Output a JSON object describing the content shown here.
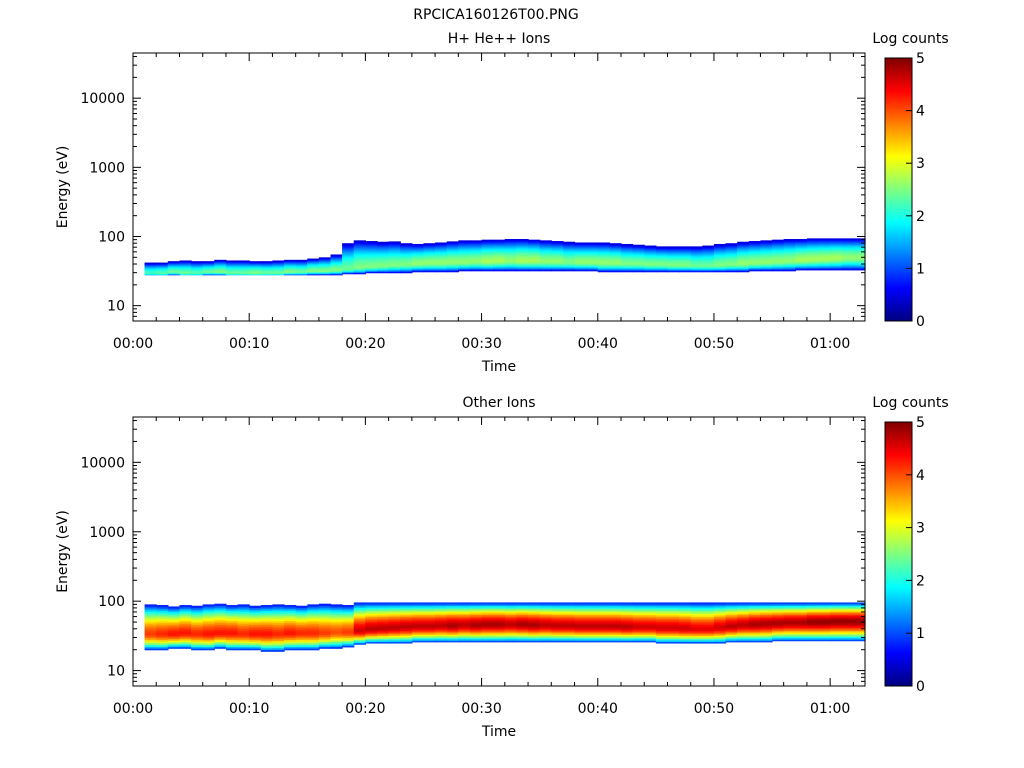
{
  "figure": {
    "title": "RPCICA160126T00.PNG"
  },
  "colormap": [
    "#00007f",
    "#0000ff",
    "#007fff",
    "#00ffff",
    "#7fff7f",
    "#ffff00",
    "#ff7f00",
    "#ff0000",
    "#7f0000"
  ],
  "chart_data": [
    {
      "type": "heatmap",
      "title": "H+ He++ Ions",
      "xlabel": "Time",
      "ylabel": "Energy (eV)",
      "x_ticks": [
        "00:00",
        "00:10",
        "00:20",
        "00:30",
        "00:40",
        "00:50",
        "01:00"
      ],
      "x_tick_minutes": [
        0,
        10,
        20,
        30,
        40,
        50,
        60
      ],
      "xlim_minutes": [
        0,
        63
      ],
      "y_scale": "log",
      "ylim": [
        6,
        45000
      ],
      "y_ticks": [
        "10",
        "100",
        "1000",
        "10000"
      ],
      "y_tick_values": [
        10,
        100,
        1000,
        10000
      ],
      "colorbar": {
        "label": "Log counts",
        "range": [
          0,
          5
        ],
        "ticks": [
          "0",
          "1",
          "2",
          "3",
          "4",
          "5"
        ]
      },
      "time_bins_minutes": [
        1,
        63
      ],
      "n_time_bins": 62,
      "profile": {
        "peak_energy_eV": [
          30,
          30,
          31,
          30,
          30,
          31,
          31,
          30,
          30,
          30,
          30,
          30,
          31,
          31,
          32,
          32,
          33,
          34,
          36,
          37,
          38,
          39,
          40,
          41,
          42,
          42,
          43,
          43,
          44,
          44,
          45,
          45,
          45,
          45,
          44,
          44,
          43,
          43,
          43,
          42,
          42,
          41,
          41,
          40,
          40,
          39,
          39,
          38,
          38,
          39,
          40,
          41,
          42,
          43,
          44,
          45,
          46,
          47,
          48,
          49,
          50,
          50
        ],
        "peak_log_counts": [
          2.2,
          2.3,
          2.4,
          2.4,
          2.3,
          2.4,
          2.5,
          2.4,
          2.4,
          2.5,
          2.4,
          2.4,
          2.5,
          2.4,
          2.5,
          2.5,
          2.5,
          2.4,
          2.5,
          2.5,
          2.5,
          2.5,
          2.5,
          2.6,
          2.6,
          2.6,
          2.6,
          2.6,
          2.6,
          2.7,
          2.7,
          2.6,
          2.7,
          2.7,
          2.6,
          2.6,
          2.5,
          2.6,
          2.6,
          2.6,
          2.6,
          2.5,
          2.5,
          2.5,
          2.5,
          2.5,
          2.5,
          2.4,
          2.4,
          2.5,
          2.5,
          2.6,
          2.6,
          2.6,
          2.6,
          2.6,
          2.7,
          2.7,
          2.7,
          2.7,
          2.6,
          2.6
        ],
        "upper_edge_eV": [
          42,
          42,
          44,
          45,
          44,
          44,
          46,
          45,
          45,
          44,
          44,
          45,
          46,
          46,
          48,
          50,
          55,
          80,
          88,
          86,
          84,
          85,
          80,
          78,
          80,
          82,
          85,
          88,
          88,
          90,
          90,
          92,
          92,
          90,
          88,
          86,
          84,
          82,
          82,
          82,
          80,
          78,
          76,
          74,
          72,
          72,
          72,
          72,
          74,
          78,
          80,
          84,
          86,
          88,
          90,
          92,
          92,
          94,
          94,
          94,
          94,
          94
        ],
        "lower_edge_eV": [
          28,
          28,
          28,
          28,
          28,
          28,
          28,
          28,
          28,
          28,
          28,
          28,
          28,
          28,
          28,
          28,
          28,
          29,
          29,
          30,
          30,
          30,
          30,
          31,
          31,
          31,
          31,
          32,
          32,
          32,
          32,
          32,
          32,
          32,
          32,
          32,
          32,
          32,
          32,
          31,
          31,
          31,
          31,
          31,
          31,
          31,
          31,
          31,
          31,
          31,
          31,
          31,
          32,
          32,
          32,
          32,
          33,
          33,
          33,
          33,
          33,
          33
        ]
      }
    },
    {
      "type": "heatmap",
      "title": "Other Ions",
      "xlabel": "Time",
      "ylabel": "Energy (eV)",
      "x_ticks": [
        "00:00",
        "00:10",
        "00:20",
        "00:30",
        "00:40",
        "00:50",
        "01:00"
      ],
      "x_tick_minutes": [
        0,
        10,
        20,
        30,
        40,
        50,
        60
      ],
      "xlim_minutes": [
        0,
        63
      ],
      "y_scale": "log",
      "ylim": [
        6,
        45000
      ],
      "y_ticks": [
        "10",
        "100",
        "1000",
        "10000"
      ],
      "y_tick_values": [
        10,
        100,
        1000,
        10000
      ],
      "colorbar": {
        "label": "Log counts",
        "range": [
          0,
          5
        ],
        "ticks": [
          "0",
          "1",
          "2",
          "3",
          "4",
          "5"
        ]
      },
      "time_bins_minutes": [
        1,
        63
      ],
      "n_time_bins": 62,
      "profile": {
        "peak_energy_eV": [
          34,
          34,
          34,
          35,
          34,
          34,
          35,
          35,
          34,
          34,
          34,
          34,
          35,
          35,
          35,
          35,
          36,
          36,
          38,
          40,
          41,
          42,
          43,
          44,
          44,
          45,
          45,
          46,
          46,
          47,
          47,
          47,
          47,
          46,
          46,
          45,
          45,
          44,
          44,
          44,
          44,
          43,
          43,
          43,
          42,
          42,
          41,
          40,
          40,
          42,
          44,
          46,
          47,
          48,
          49,
          50,
          50,
          51,
          51,
          52,
          52,
          52
        ],
        "peak_log_counts": [
          4.1,
          4.2,
          4.3,
          4.3,
          4.2,
          4.3,
          4.3,
          4.3,
          4.2,
          4.3,
          4.3,
          4.2,
          4.3,
          4.2,
          4.2,
          4.1,
          4.0,
          4.1,
          4.6,
          4.7,
          4.7,
          4.7,
          4.7,
          4.7,
          4.7,
          4.7,
          4.8,
          4.7,
          4.8,
          4.8,
          4.8,
          4.7,
          4.8,
          4.8,
          4.7,
          4.7,
          4.7,
          4.7,
          4.7,
          4.7,
          4.7,
          4.7,
          4.6,
          4.6,
          4.6,
          4.6,
          4.6,
          4.5,
          4.5,
          4.6,
          4.7,
          4.7,
          4.8,
          4.8,
          4.8,
          4.8,
          4.8,
          4.9,
          4.9,
          4.9,
          4.9,
          4.9
        ],
        "upper_edge_eV": [
          90,
          88,
          84,
          88,
          86,
          90,
          92,
          88,
          90,
          86,
          88,
          90,
          88,
          86,
          90,
          92,
          90,
          88,
          96,
          96,
          96,
          96,
          96,
          96,
          96,
          96,
          96,
          96,
          96,
          96,
          96,
          96,
          96,
          96,
          96,
          96,
          96,
          96,
          96,
          96,
          96,
          96,
          96,
          96,
          96,
          96,
          96,
          96,
          96,
          96,
          96,
          96,
          96,
          96,
          96,
          96,
          96,
          96,
          96,
          96,
          96,
          96
        ],
        "lower_edge_eV": [
          20,
          20,
          21,
          21,
          20,
          20,
          21,
          20,
          20,
          20,
          19,
          19,
          20,
          20,
          20,
          21,
          21,
          22,
          24,
          25,
          25,
          25,
          25,
          26,
          26,
          26,
          26,
          26,
          26,
          26,
          26,
          26,
          26,
          26,
          26,
          26,
          26,
          26,
          26,
          26,
          26,
          26,
          26,
          26,
          25,
          25,
          25,
          25,
          25,
          25,
          26,
          26,
          26,
          26,
          27,
          27,
          27,
          27,
          27,
          27,
          27,
          27
        ]
      }
    }
  ]
}
